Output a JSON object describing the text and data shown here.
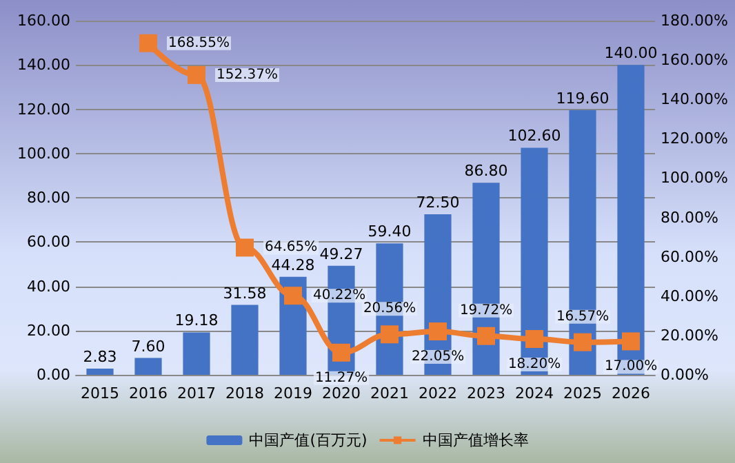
{
  "chart_data": {
    "type": "bar",
    "categories": [
      "2015",
      "2016",
      "2017",
      "2018",
      "2019",
      "2020",
      "2021",
      "2022",
      "2023",
      "2024",
      "2025",
      "2026"
    ],
    "series": [
      {
        "name": "中国产值(百万元)",
        "color": "#4472c4",
        "values": [
          2.83,
          7.6,
          19.18,
          31.58,
          44.28,
          49.27,
          59.4,
          72.5,
          86.8,
          102.6,
          119.6,
          140
        ],
        "value_labels": [
          "2.83",
          "7.60",
          "19.18",
          "31.58",
          "44.28",
          "49.27",
          "59.40",
          "72.50",
          "86.80",
          "102.60",
          "119.60",
          "140.00"
        ]
      },
      {
        "name": "中国产值增长率",
        "type": "line",
        "axis": "y2",
        "color": "#ed7d31",
        "marker": "square",
        "values": [
          null,
          168.55,
          152.37,
          64.65,
          40.22,
          11.27,
          20.56,
          22.05,
          19.72,
          18.2,
          16.57,
          17
        ],
        "value_labels": [
          null,
          "168.55%",
          "152.37%",
          "64.65%",
          "40.22%",
          "11.27%",
          "20.56%",
          "22.05%",
          "19.72%",
          "18.20%",
          "16.57%",
          "17.00%"
        ]
      }
    ],
    "ylim": [
      0,
      160
    ],
    "yticks": [
      {
        "value": 0,
        "label": "0.00"
      },
      {
        "value": 20,
        "label": "20.00"
      },
      {
        "value": 40,
        "label": "40.00"
      },
      {
        "value": 60,
        "label": "60.00"
      },
      {
        "value": 80,
        "label": "80.00"
      },
      {
        "value": 100,
        "label": "100.00"
      },
      {
        "value": 120,
        "label": "120.00"
      },
      {
        "value": 140,
        "label": "140.00"
      },
      {
        "value": 160,
        "label": "160.00"
      }
    ],
    "y2lim": [
      0,
      180
    ],
    "y2ticks": [
      {
        "value": 0,
        "label": "0.00%"
      },
      {
        "value": 20,
        "label": "20.00%"
      },
      {
        "value": 40,
        "label": "40.00%"
      },
      {
        "value": 60,
        "label": "60.00%"
      },
      {
        "value": 80,
        "label": "80.00%"
      },
      {
        "value": 100,
        "label": "100.00%"
      },
      {
        "value": 120,
        "label": "120.00%"
      },
      {
        "value": 140,
        "label": "140.00%"
      },
      {
        "value": 160,
        "label": "160.00%"
      },
      {
        "value": 180,
        "label": "180.00%"
      }
    ],
    "grid": "y",
    "legend": "bottom"
  }
}
